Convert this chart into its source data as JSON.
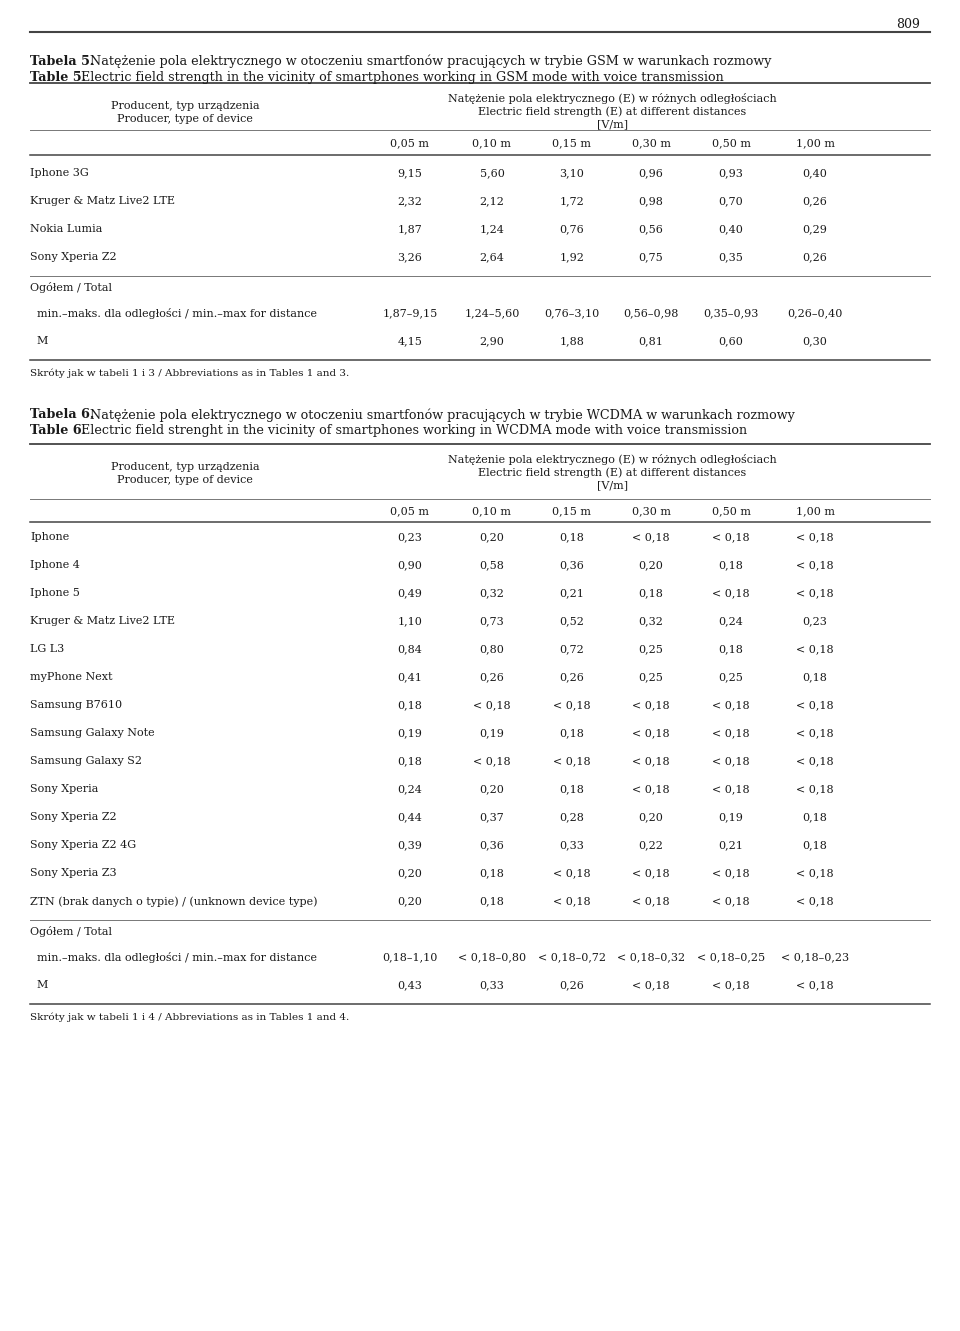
{
  "page_number": "809",
  "bg_color": "#ffffff",
  "text_color": "#1a1a1a",
  "font_size": 8.0,
  "title_font_size": 9.2,
  "table5": {
    "title_bold": "Tabela 5.",
    "title_rest": " Natężenie pola elektrycznego w otoczeniu smartfonów pracujących w trybie GSM w warunkach rozmowy",
    "subtitle_bold": "Table 5.",
    "subtitle_rest": " Electric field strength in the vicinity of smartphones working in GSM mode with voice transmission",
    "col_header_line1": "Natężenie pola elektrycznego (E) w różnych odległościach",
    "col_header_line2": "Electric field strength (E) at different distances",
    "col_header_line3": "[V/m]",
    "row_header_line1": "Producent, typ urządzenia",
    "row_header_line2": "Producer, type of device",
    "distances": [
      "0,05 m",
      "0,10 m",
      "0,15 m",
      "0,30 m",
      "0,50 m",
      "1,00 m"
    ],
    "rows": [
      {
        "device": "Iphone 3G",
        "values": [
          "9,15",
          "5,60",
          "3,10",
          "0,96",
          "0,93",
          "0,40"
        ]
      },
      {
        "device": "Kruger & Matz Live2 LTE",
        "values": [
          "2,32",
          "2,12",
          "1,72",
          "0,98",
          "0,70",
          "0,26"
        ]
      },
      {
        "device": "Nokia Lumia",
        "values": [
          "1,87",
          "1,24",
          "0,76",
          "0,56",
          "0,40",
          "0,29"
        ]
      },
      {
        "device": "Sony Xperia Z2",
        "values": [
          "3,26",
          "2,64",
          "1,92",
          "0,75",
          "0,35",
          "0,26"
        ]
      }
    ],
    "ogolom_label": "Ogółem / Total",
    "min_max_label": "  min.–maks. dla odległości / min.–max for distance",
    "min_max_values": [
      "1,87–9,15",
      "1,24–5,60",
      "0,76–3,10",
      "0,56–0,98",
      "0,35–0,93",
      "0,26–0,40"
    ],
    "m_label": "  M",
    "m_values": [
      "4,15",
      "2,90",
      "1,88",
      "0,81",
      "0,60",
      "0,30"
    ],
    "footnote": "Skróty jak w tabeli 1 i 3 / Abbreviations as in Tables 1 and 3."
  },
  "table6": {
    "title_bold": "Tabela 6.",
    "title_rest": " Natężenie pola elektrycznego w otoczeniu smartfonów pracujących w trybie WCDMA w warunkach rozmowy",
    "subtitle_bold": "Table 6.",
    "subtitle_rest": " Electric field strenght in the vicinity of smartphones working in WCDMA mode with voice transmission",
    "col_header_line1": "Natężenie pola elektrycznego (E) w różnych odległościach",
    "col_header_line2": "Electric field strength (E) at different distances",
    "col_header_line3": "[V/m]",
    "row_header_line1": "Producent, typ urządzenia",
    "row_header_line2": "Producer, type of device",
    "distances": [
      "0,05 m",
      "0,10 m",
      "0,15 m",
      "0,30 m",
      "0,50 m",
      "1,00 m"
    ],
    "rows": [
      {
        "device": "Iphone",
        "values": [
          "0,23",
          "0,20",
          "0,18",
          "< 0,18",
          "< 0,18",
          "< 0,18"
        ]
      },
      {
        "device": "Iphone 4",
        "values": [
          "0,90",
          "0,58",
          "0,36",
          "0,20",
          "0,18",
          "< 0,18"
        ]
      },
      {
        "device": "Iphone 5",
        "values": [
          "0,49",
          "0,32",
          "0,21",
          "0,18",
          "< 0,18",
          "< 0,18"
        ]
      },
      {
        "device": "Kruger & Matz Live2 LTE",
        "values": [
          "1,10",
          "0,73",
          "0,52",
          "0,32",
          "0,24",
          "0,23"
        ]
      },
      {
        "device": "LG L3",
        "values": [
          "0,84",
          "0,80",
          "0,72",
          "0,25",
          "0,18",
          "< 0,18"
        ]
      },
      {
        "device": "myPhone Next",
        "values": [
          "0,41",
          "0,26",
          "0,26",
          "0,25",
          "0,25",
          "0,18"
        ]
      },
      {
        "device": "Samsung B7610",
        "values": [
          "0,18",
          "< 0,18",
          "< 0,18",
          "< 0,18",
          "< 0,18",
          "< 0,18"
        ]
      },
      {
        "device": "Samsung Galaxy Note",
        "values": [
          "0,19",
          "0,19",
          "0,18",
          "< 0,18",
          "< 0,18",
          "< 0,18"
        ]
      },
      {
        "device": "Samsung Galaxy S2",
        "values": [
          "0,18",
          "< 0,18",
          "< 0,18",
          "< 0,18",
          "< 0,18",
          "< 0,18"
        ]
      },
      {
        "device": "Sony Xperia",
        "values": [
          "0,24",
          "0,20",
          "0,18",
          "< 0,18",
          "< 0,18",
          "< 0,18"
        ]
      },
      {
        "device": "Sony Xperia Z2",
        "values": [
          "0,44",
          "0,37",
          "0,28",
          "0,20",
          "0,19",
          "0,18"
        ]
      },
      {
        "device": "Sony Xperia Z2 4G",
        "values": [
          "0,39",
          "0,36",
          "0,33",
          "0,22",
          "0,21",
          "0,18"
        ]
      },
      {
        "device": "Sony Xperia Z3",
        "values": [
          "0,20",
          "0,18",
          "< 0,18",
          "< 0,18",
          "< 0,18",
          "< 0,18"
        ]
      },
      {
        "device": "ZTN (brak danych o typie) / (unknown device type)",
        "values": [
          "0,20",
          "0,18",
          "< 0,18",
          "< 0,18",
          "< 0,18",
          "< 0,18"
        ]
      }
    ],
    "ogolom_label": "Ogółem / Total",
    "min_max_label": "  min.–maks. dla odległości / min.–max for distance",
    "min_max_values": [
      "0,18–1,10",
      "< 0,18–0,80",
      "< 0,18–0,72",
      "< 0,18–0,32",
      "< 0,18–0,25",
      "< 0,18–0,23"
    ],
    "m_label": "  M",
    "m_values": [
      "0,43",
      "0,33",
      "0,26",
      "< 0,18",
      "< 0,18",
      "< 0,18"
    ],
    "footnote": "Skróty jak w tabeli 1 i 4 / Abbreviations as in Tables 1 and 4."
  }
}
